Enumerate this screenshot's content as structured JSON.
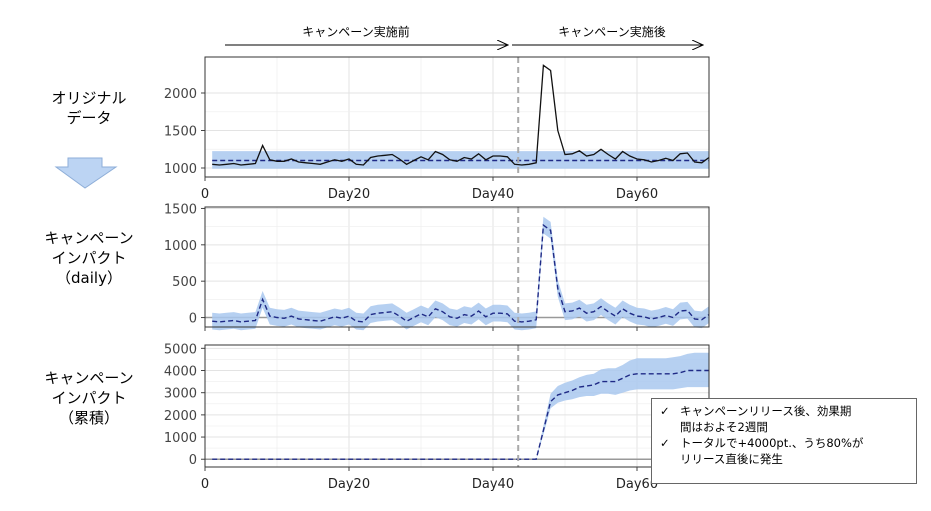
{
  "phase_labels": {
    "before": "キャンペーン実施前",
    "after": "キャンペーン実施後"
  },
  "panel_labels": {
    "original": [
      "オリジナル",
      "データ"
    ],
    "daily": [
      "キャンペーン",
      "インパクト",
      "（daily）"
    ],
    "cumulative": [
      "キャンペーン",
      "インパクト",
      "（累積）"
    ]
  },
  "note": {
    "check_icon": "✓",
    "items": [
      {
        "line1": "キャンペーンリリース後、効果期",
        "line2": "間はおよそ2週間"
      },
      {
        "line1": "トータルで+4000pt.、うち80%が",
        "line2": "リリース直後に発生"
      }
    ]
  },
  "arrow_icon": "down-arrow-icon",
  "colors": {
    "band": "#a9c8ee",
    "dashed_line": "#1f2a86",
    "observed_line": "#111111",
    "vline": "#aaaaaa",
    "arrow_fill": "#bcd4f3",
    "arrow_stroke": "#8eaed8"
  },
  "chart_data": [
    {
      "type": "line",
      "panel": "original",
      "intervention_x": 43,
      "xlim": [
        0,
        70
      ],
      "ylim": [
        880,
        2480
      ],
      "xticks": [
        0,
        20,
        40,
        60
      ],
      "xtick_labels": [
        "0",
        "Day20",
        "Day40",
        "Day60"
      ],
      "yticks": [
        1000,
        1500,
        2000
      ],
      "ytick_labels": [
        "1000",
        "1500",
        "2000"
      ],
      "series": [
        {
          "kind": "observed",
          "values": [
            1050,
            1040,
            1050,
            1060,
            1040,
            1050,
            1060,
            1300,
            1110,
            1090,
            1090,
            1120,
            1080,
            1070,
            1060,
            1050,
            1080,
            1110,
            1090,
            1120,
            1050,
            1040,
            1140,
            1160,
            1170,
            1180,
            1120,
            1050,
            1100,
            1150,
            1110,
            1220,
            1180,
            1110,
            1090,
            1140,
            1120,
            1190,
            1110,
            1160,
            1160,
            1150,
            1050,
            1040,
            1050,
            1070,
            2370,
            2300,
            1500,
            1180,
            1190,
            1230,
            1160,
            1180,
            1250,
            1180,
            1120,
            1220,
            1160,
            1120,
            1110,
            1080,
            1100,
            1130,
            1100,
            1190,
            1200,
            1080,
            1070,
            1140
          ]
        },
        {
          "kind": "prediction",
          "values": [
            1100,
            1100,
            1100,
            1100,
            1100,
            1100,
            1100,
            1100,
            1100,
            1100,
            1100,
            1100,
            1100,
            1100,
            1100,
            1100,
            1100,
            1100,
            1100,
            1100,
            1100,
            1100,
            1100,
            1100,
            1100,
            1100,
            1100,
            1100,
            1100,
            1100,
            1100,
            1100,
            1100,
            1100,
            1100,
            1100,
            1100,
            1100,
            1100,
            1100,
            1100,
            1100,
            1100,
            1100,
            1100,
            1100,
            1100,
            1100,
            1100,
            1100,
            1100,
            1100,
            1100,
            1100,
            1100,
            1100,
            1100,
            1100,
            1100,
            1100,
            1100,
            1100,
            1100,
            1100,
            1100,
            1100,
            1100,
            1100,
            1100,
            1100
          ],
          "lower": 990,
          "upper": 1225
        }
      ]
    },
    {
      "type": "line",
      "panel": "daily",
      "intervention_x": 43,
      "xlim": [
        0,
        70
      ],
      "ylim": [
        -130,
        1520
      ],
      "yticks": [
        0,
        500,
        1000,
        1500
      ],
      "ytick_labels": [
        "0",
        "500",
        "1000",
        "1500"
      ],
      "series": [
        {
          "kind": "impact",
          "values": [
            -50,
            -60,
            -50,
            -40,
            -60,
            -50,
            -40,
            250,
            20,
            0,
            -10,
            20,
            -20,
            -30,
            -40,
            -50,
            -20,
            10,
            -10,
            20,
            -50,
            -60,
            40,
            60,
            70,
            80,
            20,
            -50,
            0,
            50,
            10,
            120,
            80,
            10,
            -10,
            40,
            20,
            90,
            10,
            60,
            60,
            50,
            -50,
            -60,
            -50,
            -30,
            1270,
            1200,
            400,
            80,
            90,
            130,
            60,
            80,
            150,
            80,
            20,
            120,
            60,
            20,
            10,
            -20,
            0,
            30,
            0,
            90,
            100,
            -20,
            -30,
            40
          ],
          "band_halfwidth": 115
        }
      ]
    },
    {
      "type": "line",
      "panel": "cumulative",
      "intervention_x": 43,
      "xlim": [
        0,
        70
      ],
      "ylim": [
        -350,
        5150
      ],
      "yticks": [
        0,
        1000,
        2000,
        3000,
        4000,
        5000
      ],
      "ytick_labels": [
        "0",
        "1000",
        "2000",
        "3000",
        "4000",
        "5000"
      ],
      "series": [
        {
          "kind": "cumulative_impact",
          "values": [
            0,
            0,
            0,
            0,
            0,
            0,
            0,
            0,
            0,
            0,
            0,
            0,
            0,
            0,
            0,
            0,
            0,
            0,
            0,
            0,
            0,
            0,
            0,
            0,
            0,
            0,
            0,
            0,
            0,
            0,
            0,
            0,
            0,
            0,
            0,
            0,
            0,
            0,
            0,
            0,
            0,
            0,
            0,
            0,
            0,
            0,
            1300,
            2600,
            2900,
            3000,
            3100,
            3250,
            3300,
            3350,
            3500,
            3500,
            3500,
            3650,
            3800,
            3850,
            3850,
            3850,
            3850,
            3850,
            3850,
            3900,
            4000,
            4000,
            4000,
            4000
          ],
          "lower": [
            0,
            0,
            0,
            0,
            0,
            0,
            0,
            0,
            0,
            0,
            0,
            0,
            0,
            0,
            0,
            0,
            0,
            0,
            0,
            0,
            0,
            0,
            0,
            0,
            0,
            0,
            0,
            0,
            0,
            0,
            0,
            0,
            0,
            0,
            0,
            0,
            0,
            0,
            0,
            0,
            0,
            0,
            0,
            0,
            0,
            0,
            1100,
            2300,
            2550,
            2650,
            2700,
            2800,
            2850,
            2850,
            2950,
            2950,
            2900,
            3000,
            3100,
            3150,
            3150,
            3150,
            3150,
            3150,
            3150,
            3200,
            3250,
            3250,
            3250,
            3250
          ],
          "upper": [
            0,
            0,
            0,
            0,
            0,
            0,
            0,
            0,
            0,
            0,
            0,
            0,
            0,
            0,
            0,
            0,
            0,
            0,
            0,
            0,
            0,
            0,
            0,
            0,
            0,
            0,
            0,
            0,
            0,
            0,
            0,
            0,
            0,
            0,
            0,
            0,
            0,
            0,
            0,
            0,
            0,
            0,
            0,
            0,
            0,
            0,
            1500,
            2950,
            3300,
            3450,
            3550,
            3700,
            3800,
            3850,
            4050,
            4100,
            4100,
            4250,
            4450,
            4550,
            4550,
            4550,
            4550,
            4550,
            4600,
            4650,
            4750,
            4800,
            4800,
            4800
          ]
        }
      ]
    }
  ]
}
